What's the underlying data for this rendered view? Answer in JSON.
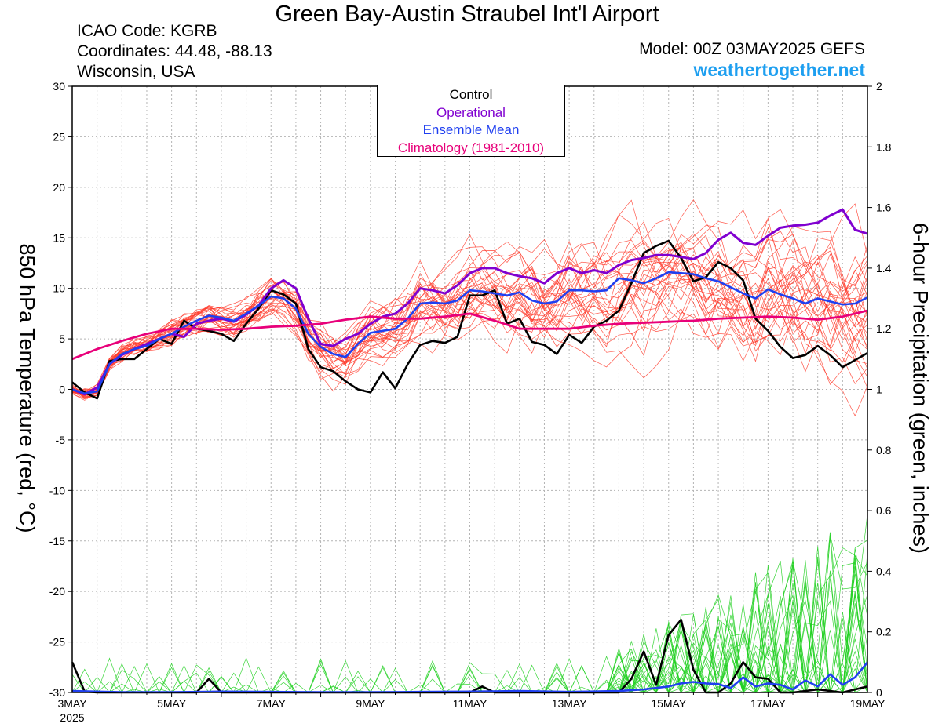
{
  "header": {
    "title": "Green Bay-Austin Straubel Int'l Airport",
    "icao": "ICAO Code: KGRB",
    "coords": "Coordinates: 44.48, -88.13",
    "region": "Wisconsin, USA",
    "model": "Model: 00Z 03MAY2025 GEFS",
    "site": "weathertogether.net"
  },
  "legend": [
    {
      "label": "Control",
      "color": "#000000"
    },
    {
      "label": "Operational",
      "color": "#8000d0"
    },
    {
      "label": "Ensemble Mean",
      "color": "#1f3ff0"
    },
    {
      "label": "Climatology (1981-2010)",
      "color": "#e8007a"
    }
  ],
  "chart_data": {
    "type": "line",
    "ylabel_left": "850 hPa Temperature (red, °C)",
    "ylabel_right": "6-hour Precipitation (green, inches)",
    "x_ticks": [
      "3MAY",
      "5MAY",
      "7MAY",
      "9MAY",
      "11MAY",
      "13MAY",
      "15MAY",
      "17MAY",
      "19MAY"
    ],
    "x_year_label": "2025",
    "xlim_days": [
      3,
      19
    ],
    "ylim_left": [
      -30,
      30
    ],
    "yticks_left": [
      30,
      25,
      20,
      15,
      10,
      5,
      0,
      -5,
      -10,
      -15,
      -20,
      -25,
      -30
    ],
    "ylim_right": [
      0,
      2
    ],
    "yticks_right": [
      "2",
      "1.8",
      "1.6",
      "1.4",
      "1.2",
      "1",
      "0.8",
      "0.6",
      "0.4",
      "0.2",
      "0"
    ],
    "grid": true,
    "colors": {
      "members_temp": "#ff3a2a",
      "members_precip": "#22d022",
      "control": "#000000",
      "operational": "#8000d0",
      "mean": "#1f3ff0",
      "climatology": "#e8007a"
    },
    "temp_series": [
      {
        "name": "Control",
        "style": "control",
        "x": [
          3,
          3.25,
          3.5,
          3.75,
          4,
          4.25,
          4.5,
          4.75,
          5,
          5.25,
          5.5,
          5.75,
          6,
          6.25,
          6.5,
          6.75,
          7,
          7.25,
          7.5,
          7.75,
          8,
          8.25,
          8.5,
          8.75,
          9,
          9.25,
          9.5,
          9.75,
          10,
          10.25,
          10.5,
          10.75,
          11,
          11.25,
          11.5,
          11.75,
          12,
          12.25,
          12.5,
          12.75,
          13,
          13.25,
          13.5,
          13.75,
          14,
          14.25,
          14.5,
          14.75,
          15,
          15.25,
          15.5,
          15.75,
          16,
          16.25,
          16.5,
          16.75,
          17,
          17.25,
          17.5,
          17.75,
          18,
          18.25,
          18.5,
          18.75,
          19
        ],
        "y": [
          0.7,
          -0.3,
          -0.9,
          2.8,
          3,
          3,
          4,
          5,
          4.5,
          6.8,
          6,
          5.8,
          5.5,
          4.8,
          6.5,
          8,
          9.8,
          9.4,
          8.5,
          4,
          2.2,
          1.8,
          0.8,
          0,
          -0.3,
          1.7,
          0.1,
          2.5,
          4.4,
          4.8,
          4.6,
          5.2,
          9.3,
          9.3,
          9.8,
          6.5,
          7,
          4.7,
          4.4,
          3.5,
          5.4,
          4.6,
          6.2,
          6.8,
          7.8,
          10.5,
          13.5,
          14.2,
          14.7,
          13,
          10.7,
          11.1,
          12.6,
          12,
          10.8,
          7,
          5.8,
          4.2,
          3.1,
          3.4,
          4.3,
          3.4,
          2.2,
          2.9,
          3.6
        ]
      },
      {
        "name": "Operational",
        "style": "operational",
        "x": [
          3,
          3.25,
          3.5,
          3.75,
          4,
          4.25,
          4.5,
          4.75,
          5,
          5.25,
          5.5,
          5.75,
          6,
          6.25,
          6.5,
          6.75,
          7,
          7.25,
          7.5,
          7.75,
          8,
          8.25,
          8.5,
          8.75,
          9,
          9.25,
          9.5,
          9.75,
          10,
          10.25,
          10.5,
          10.75,
          11,
          11.25,
          11.5,
          11.75,
          12,
          12.25,
          12.5,
          12.75,
          13,
          13.25,
          13.5,
          13.75,
          14,
          14.25,
          14.5,
          14.75,
          15,
          15.25,
          15.5,
          15.75,
          16,
          16.25,
          16.5,
          16.75,
          17,
          17.25,
          17.5,
          17.75,
          18,
          18.25,
          18.5,
          18.75,
          19
        ],
        "y": [
          0,
          -0.5,
          0.2,
          2.5,
          3.4,
          4,
          4.5,
          5,
          5.5,
          5.2,
          6.5,
          6.8,
          7,
          6.7,
          7.4,
          8.3,
          10,
          10.8,
          10,
          7,
          4.5,
          4.3,
          5,
          5.5,
          6.5,
          7.2,
          7.5,
          8.5,
          10,
          9.8,
          9.5,
          10.3,
          11.5,
          12,
          12,
          11.5,
          11.2,
          11,
          10.5,
          11.5,
          12,
          11.5,
          11.8,
          11.5,
          12.3,
          12.8,
          13,
          13.3,
          13.3,
          13.1,
          12.9,
          13.5,
          14.8,
          15.5,
          14.5,
          14.3,
          15.2,
          16,
          16.2,
          16.3,
          16.5,
          17.2,
          17.8,
          15.8,
          15.4
        ]
      },
      {
        "name": "Ensemble Mean",
        "style": "mean",
        "x": [
          3,
          3.25,
          3.5,
          3.75,
          4,
          4.25,
          4.5,
          4.75,
          5,
          5.25,
          5.5,
          5.75,
          6,
          6.25,
          6.5,
          6.75,
          7,
          7.25,
          7.5,
          7.75,
          8,
          8.25,
          8.5,
          8.75,
          9,
          9.25,
          9.5,
          9.75,
          10,
          10.25,
          10.5,
          10.75,
          11,
          11.25,
          11.5,
          11.75,
          12,
          12.25,
          12.5,
          12.75,
          13,
          13.25,
          13.5,
          13.75,
          14,
          14.25,
          14.5,
          14.75,
          15,
          15.25,
          15.5,
          15.75,
          16,
          16.25,
          16.5,
          16.75,
          17,
          17.25,
          17.5,
          17.75,
          18,
          18.25,
          18.5,
          18.75,
          19
        ],
        "y": [
          0,
          -0.4,
          -0.2,
          2.5,
          3.5,
          4,
          4.3,
          5,
          5.5,
          6.2,
          6.8,
          7.3,
          7.1,
          6.8,
          7.5,
          8.3,
          9.2,
          9,
          8,
          5.5,
          4.2,
          3.5,
          3.2,
          4.5,
          5.6,
          5.8,
          6,
          7,
          8.5,
          8.6,
          8.5,
          8.8,
          9.8,
          9.7,
          9.5,
          9.3,
          9.6,
          8.8,
          8.5,
          8.7,
          9.8,
          9.8,
          9.7,
          9.8,
          11,
          10.8,
          10.5,
          11,
          11.6,
          11.5,
          11.4,
          11,
          10.7,
          10.1,
          9.5,
          9,
          9.9,
          9.4,
          9,
          8.5,
          9,
          8.7,
          8.4,
          8.5,
          9.1
        ]
      },
      {
        "name": "Climatology (1981-2010)",
        "style": "climatology",
        "x": [
          3,
          3.5,
          4,
          4.5,
          5,
          5.5,
          6,
          6.5,
          7,
          7.5,
          8,
          8.5,
          9,
          9.5,
          10,
          10.5,
          11,
          11.5,
          12,
          12.5,
          13,
          13.5,
          14,
          14.5,
          15,
          15.5,
          16,
          16.5,
          17,
          17.5,
          18,
          18.5,
          19
        ],
        "y": [
          3,
          4,
          4.8,
          5.5,
          6,
          6,
          5.9,
          6,
          6.2,
          6.3,
          6.5,
          6.9,
          7.2,
          7,
          7,
          7.2,
          7.5,
          6.8,
          6,
          6,
          6,
          6.3,
          6.5,
          6.6,
          6.7,
          6.8,
          7,
          7.1,
          7.2,
          7.1,
          6.9,
          7.2,
          7.8
        ]
      }
    ],
    "precip_series": [
      {
        "name": "Control",
        "style": "control",
        "x": [
          3,
          3.25,
          3.5,
          4,
          5,
          5.5,
          5.75,
          6,
          7,
          8,
          9,
          10,
          11,
          11.25,
          11.5,
          12,
          13,
          13.5,
          14,
          14.25,
          14.5,
          14.75,
          15,
          15.25,
          15.5,
          15.75,
          16,
          16.25,
          16.5,
          16.75,
          17,
          17.25,
          17.5,
          18,
          18.5,
          19
        ],
        "y": [
          0.1,
          0.003,
          0,
          0,
          0,
          0,
          0.045,
          0,
          0,
          0,
          0,
          0,
          0,
          0.02,
          0,
          0,
          0,
          0,
          0,
          0.045,
          0.135,
          0.025,
          0.19,
          0.24,
          0.075,
          0,
          0,
          0.03,
          0.1,
          0.05,
          0.045,
          0,
          0,
          0.01,
          0,
          0.02
        ]
      },
      {
        "name": "Ensemble Mean",
        "style": "mean",
        "x": [
          3,
          4,
          5,
          6,
          7,
          8,
          9,
          10,
          11,
          12,
          13,
          14,
          14.5,
          15,
          15.25,
          15.5,
          15.75,
          16,
          16.25,
          16.5,
          16.75,
          17,
          17.25,
          17.5,
          17.75,
          18,
          18.25,
          18.5,
          18.75,
          19
        ],
        "y": [
          0.005,
          0.001,
          0.001,
          0.003,
          0.002,
          0.001,
          0.001,
          0.002,
          0.003,
          0.005,
          0.002,
          0.005,
          0.01,
          0.02,
          0.03,
          0.035,
          0.03,
          0.028,
          0.015,
          0.05,
          0.02,
          0.03,
          0.025,
          0.01,
          0.04,
          0.02,
          0.06,
          0.025,
          0.05,
          0.1
        ]
      }
    ]
  }
}
